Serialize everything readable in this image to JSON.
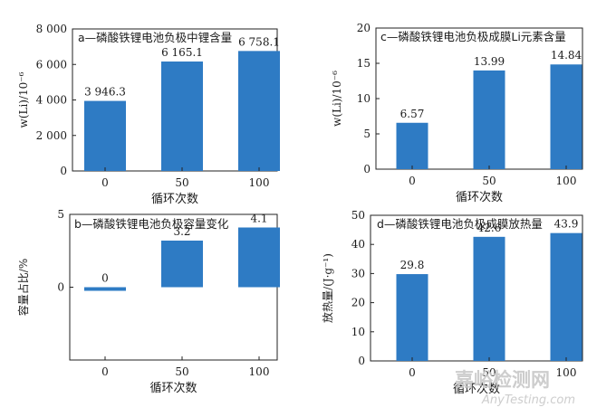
{
  "chart_data": [
    {
      "type": "bar",
      "title": "a—磷酸铁锂电池负极中锂含量",
      "ylabel": "w(Li)/10⁻⁶",
      "xlabel": "循环次数",
      "categories": [
        "0",
        "50",
        "100"
      ],
      "values": [
        3946.3,
        6165.1,
        6758.1
      ],
      "value_labels": [
        "3 946.3",
        "6 165.1",
        "6 758.1"
      ],
      "ylim": [
        0,
        8000
      ],
      "yticks": [
        0,
        2000,
        4000,
        6000,
        8000
      ],
      "ytick_labels": [
        "0",
        "2 000",
        "4 000",
        "6 000",
        "8 000"
      ],
      "bar_color": "#2e7bc4"
    },
    {
      "type": "bar",
      "title": "c—磷酸铁锂电池负极成膜Li元素含量",
      "ylabel": "w(Li)/10⁻⁶",
      "xlabel": "循环次数",
      "categories": [
        "0",
        "50",
        "100"
      ],
      "values": [
        6.57,
        13.99,
        14.84
      ],
      "value_labels": [
        "6.57",
        "13.99",
        "14.84"
      ],
      "ylim": [
        0,
        20
      ],
      "yticks": [
        0,
        5,
        10,
        15,
        20
      ],
      "ytick_labels": [
        "0",
        "5",
        "10",
        "15",
        "20"
      ],
      "bar_color": "#2e7bc4"
    },
    {
      "type": "bar",
      "title": "b—磷酸铁锂电池负极容量变化",
      "ylabel": "容量占比/%",
      "xlabel": "循环次数",
      "categories": [
        "0",
        "50",
        "100"
      ],
      "values": [
        0,
        3.2,
        4.1
      ],
      "value_labels": [
        "0",
        "3.2",
        "4.1"
      ],
      "ylim": [
        -5,
        5
      ],
      "yticks": [
        0,
        5
      ],
      "ytick_labels": [
        "0",
        "5"
      ],
      "bar_color": "#2e7bc4"
    },
    {
      "type": "bar",
      "title": "d—磷酸铁锂电池负极成膜放热量",
      "ylabel": "放热量/(J·g⁻¹)",
      "xlabel": "循环次数",
      "categories": [
        "0",
        "50",
        "100"
      ],
      "values": [
        29.8,
        42.6,
        43.9
      ],
      "value_labels": [
        "29.8",
        "42.6",
        "43.9"
      ],
      "ylim": [
        0,
        50
      ],
      "yticks": [
        0,
        10,
        20,
        30,
        40,
        50
      ],
      "ytick_labels": [
        "0",
        "10",
        "20",
        "30",
        "40",
        "50"
      ],
      "bar_color": "#2e7bc4"
    }
  ],
  "watermark": {
    "text_cn": "嘉峪检测网",
    "text_en": "AnyTesting.com"
  }
}
